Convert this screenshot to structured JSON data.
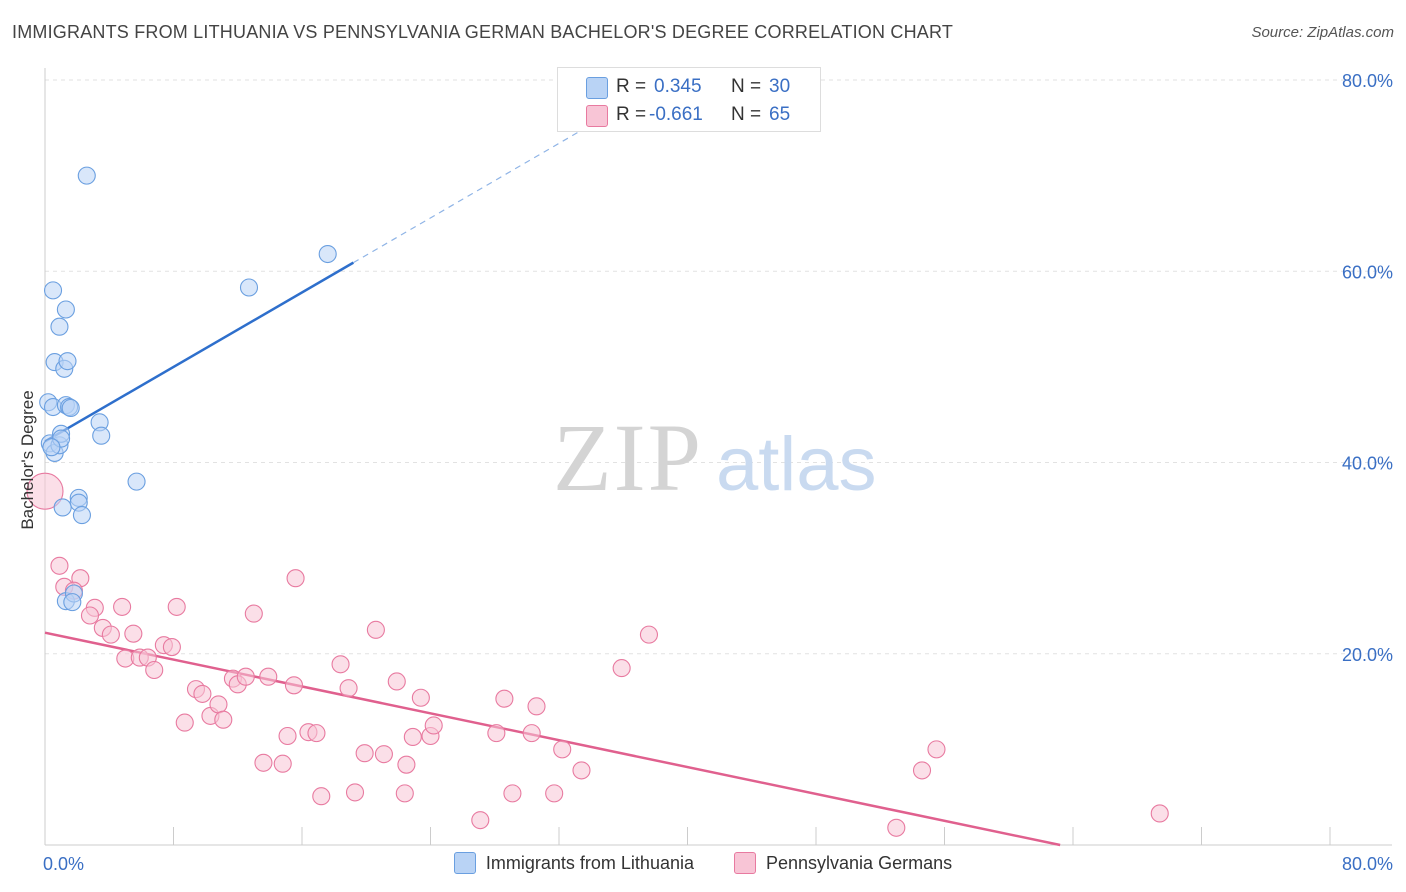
{
  "title": "IMMIGRANTS FROM LITHUANIA VS PENNSYLVANIA GERMAN BACHELOR'S DEGREE CORRELATION CHART",
  "source": "Source: ZipAtlas.com",
  "watermark": {
    "zip": "ZIP",
    "atlas": "atlas"
  },
  "stats": {
    "r_label": "R =",
    "n_label": "N =",
    "series1": {
      "r": "0.345",
      "n": "30"
    },
    "series2": {
      "r": "-0.661",
      "n": "65"
    }
  },
  "chart_data": {
    "type": "scatter",
    "title": "IMMIGRANTS FROM LITHUANIA VS PENNSYLVANIA GERMAN BACHELOR'S DEGREE CORRELATION CHART",
    "xlabel": "",
    "ylabel": "Bachelor's Degree",
    "xlim": [
      0,
      80
    ],
    "ylim": [
      0,
      80
    ],
    "x_tick_labels": [
      "0.0%",
      "80.0%"
    ],
    "y_ticks": [
      20,
      40,
      60,
      80
    ],
    "y_tick_labels": [
      "20.0%",
      "40.0%",
      "60.0%",
      "80.0%"
    ],
    "grid": true,
    "legend_position": "bottom",
    "series": [
      {
        "name": "Immigrants from Lithuania",
        "color": "#6a9fe0",
        "fill": "#b9d3f5",
        "line_color": "#2e6fcc",
        "trend": {
          "x0": 0,
          "y0": 42.2,
          "x1": 19.2,
          "y1": 60.9,
          "dash_to_x": 35,
          "dash_to_y": 76.3
        },
        "points": [
          [
            0.2,
            46.3
          ],
          [
            0.5,
            45.8
          ],
          [
            0.3,
            42.0
          ],
          [
            0.6,
            41.0
          ],
          [
            0.9,
            41.8
          ],
          [
            1.0,
            43.0
          ],
          [
            0.6,
            50.5
          ],
          [
            1.2,
            49.8
          ],
          [
            1.4,
            50.6
          ],
          [
            1.3,
            46.0
          ],
          [
            1.5,
            45.8
          ],
          [
            1.6,
            45.7
          ],
          [
            0.5,
            58.0
          ],
          [
            1.3,
            56.0
          ],
          [
            0.9,
            54.2
          ],
          [
            2.6,
            70.0
          ],
          [
            3.4,
            44.2
          ],
          [
            3.5,
            42.8
          ],
          [
            2.1,
            36.3
          ],
          [
            2.1,
            35.8
          ],
          [
            2.3,
            34.5
          ],
          [
            1.1,
            35.3
          ],
          [
            5.7,
            38.0
          ],
          [
            1.3,
            25.5
          ],
          [
            1.8,
            26.3
          ],
          [
            1.7,
            25.4
          ],
          [
            12.7,
            58.3
          ],
          [
            17.6,
            61.8
          ],
          [
            1.0,
            42.5
          ],
          [
            0.4,
            41.6
          ]
        ]
      },
      {
        "name": "Pennsylvania Germans",
        "color": "#e87aa0",
        "fill": "#f8c5d6",
        "line_color": "#e0608e",
        "trend": {
          "x0": 0,
          "y0": 22.2,
          "x1": 63.2,
          "y1": 0
        },
        "points": [
          [
            0.0,
            37.0
          ],
          [
            0.9,
            29.2
          ],
          [
            1.2,
            27.0
          ],
          [
            2.2,
            27.9
          ],
          [
            1.8,
            26.6
          ],
          [
            3.1,
            24.8
          ],
          [
            2.8,
            24.0
          ],
          [
            3.6,
            22.7
          ],
          [
            4.1,
            22.0
          ],
          [
            4.8,
            24.9
          ],
          [
            5.5,
            22.1
          ],
          [
            5.0,
            19.5
          ],
          [
            5.9,
            19.6
          ],
          [
            6.4,
            19.6
          ],
          [
            6.8,
            18.3
          ],
          [
            7.4,
            20.9
          ],
          [
            7.9,
            20.7
          ],
          [
            8.2,
            24.9
          ],
          [
            8.7,
            12.8
          ],
          [
            9.4,
            16.3
          ],
          [
            9.8,
            15.8
          ],
          [
            10.3,
            13.5
          ],
          [
            10.8,
            14.7
          ],
          [
            11.1,
            13.1
          ],
          [
            11.7,
            17.4
          ],
          [
            12.0,
            16.8
          ],
          [
            12.5,
            17.6
          ],
          [
            13.0,
            24.2
          ],
          [
            13.6,
            8.6
          ],
          [
            13.9,
            17.6
          ],
          [
            14.8,
            8.5
          ],
          [
            15.5,
            16.7
          ],
          [
            15.6,
            27.9
          ],
          [
            15.1,
            11.4
          ],
          [
            16.4,
            11.8
          ],
          [
            16.9,
            11.7
          ],
          [
            17.2,
            5.1
          ],
          [
            18.4,
            18.9
          ],
          [
            18.9,
            16.4
          ],
          [
            19.3,
            5.5
          ],
          [
            19.9,
            9.6
          ],
          [
            20.6,
            22.5
          ],
          [
            21.1,
            9.5
          ],
          [
            21.9,
            17.1
          ],
          [
            22.4,
            5.4
          ],
          [
            22.5,
            8.4
          ],
          [
            22.9,
            11.3
          ],
          [
            23.4,
            15.4
          ],
          [
            24.0,
            11.4
          ],
          [
            24.2,
            12.5
          ],
          [
            27.1,
            2.6
          ],
          [
            28.1,
            11.7
          ],
          [
            28.6,
            15.3
          ],
          [
            29.1,
            5.4
          ],
          [
            30.3,
            11.7
          ],
          [
            30.6,
            14.5
          ],
          [
            31.7,
            5.4
          ],
          [
            32.2,
            10.0
          ],
          [
            33.4,
            7.8
          ],
          [
            35.9,
            18.5
          ],
          [
            37.6,
            22.0
          ],
          [
            53.0,
            1.8
          ],
          [
            54.6,
            7.8
          ],
          [
            55.5,
            10.0
          ],
          [
            69.4,
            3.3
          ]
        ]
      }
    ]
  }
}
